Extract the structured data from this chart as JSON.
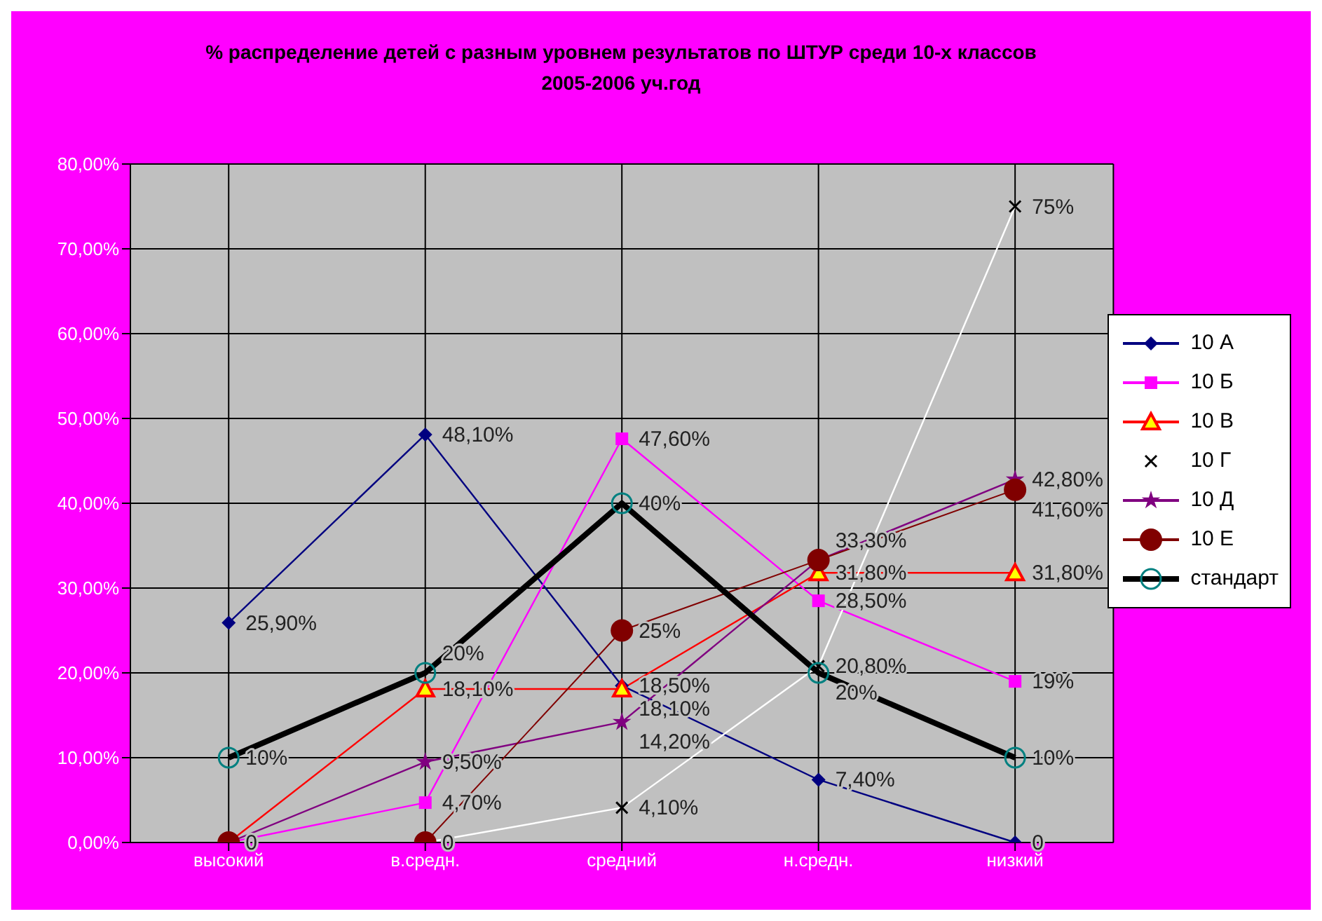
{
  "chart_data": {
    "type": "line",
    "title": "% распределение детей с разным уровнем результатов по ШТУР среди 10-х классов",
    "subtitle": "2005-2006 уч.год",
    "categories": [
      "высокий",
      "в.средн.",
      "средний",
      "н.средн.",
      "низкий"
    ],
    "series": [
      {
        "name": "10 А",
        "color": "#000080",
        "marker": "diamond",
        "values": [
          25.9,
          48.1,
          18.5,
          7.4,
          0
        ],
        "value_labels": [
          "25,90%",
          "48,10%",
          "18,50%",
          "7,40%",
          "0"
        ]
      },
      {
        "name": "10 Б",
        "color": "#ff00ff",
        "marker": "square",
        "values": [
          0,
          4.7,
          47.6,
          28.5,
          19
        ],
        "value_labels": [
          null,
          "4,70%",
          "47,60%",
          "28,50%",
          "19%"
        ]
      },
      {
        "name": "10 В",
        "color": "#ff0000",
        "marker": "triangle",
        "values": [
          0,
          18.1,
          18.1,
          31.8,
          31.8
        ],
        "value_labels": [
          null,
          "18,10%",
          "18,10%",
          "31,80%",
          "31,80%"
        ]
      },
      {
        "name": "10 Г",
        "color": "#ffffff",
        "marker": "cross",
        "values": [
          0,
          0,
          4.1,
          20.8,
          75
        ],
        "value_labels": [
          null,
          null,
          "4,10%",
          "20,80%",
          "75%"
        ]
      },
      {
        "name": "10 Д",
        "color": "#800080",
        "marker": "star",
        "values": [
          0,
          9.5,
          14.2,
          33.3,
          42.8
        ],
        "value_labels": [
          null,
          "9,50%",
          "14,20%",
          null,
          "42,80%"
        ]
      },
      {
        "name": "10 Е",
        "color": "#800000",
        "marker": "circle",
        "values": [
          0,
          0,
          25,
          33.3,
          41.6
        ],
        "value_labels": [
          "0",
          "0",
          "25%",
          "33,30%",
          "41,60%"
        ]
      },
      {
        "name": "стандарт",
        "color": "#000000",
        "marker": "circle",
        "values": [
          10,
          20,
          40,
          20,
          10
        ],
        "value_labels": [
          "10%",
          "20%",
          "40%",
          "20%",
          "10%"
        ]
      }
    ],
    "ylim": [
      0,
      80
    ],
    "yticks": [
      {
        "value": 0,
        "label": "0,00%"
      },
      {
        "value": 10,
        "label": "10,00%"
      },
      {
        "value": 20,
        "label": "20,00%"
      },
      {
        "value": 30,
        "label": "30,00%"
      },
      {
        "value": 40,
        "label": "40,00%"
      },
      {
        "value": 50,
        "label": "50,00%"
      },
      {
        "value": 60,
        "label": "60,00%"
      },
      {
        "value": 70,
        "label": "70,00%"
      },
      {
        "value": 80,
        "label": "80,00%"
      }
    ],
    "grid": true,
    "legend": "right"
  }
}
